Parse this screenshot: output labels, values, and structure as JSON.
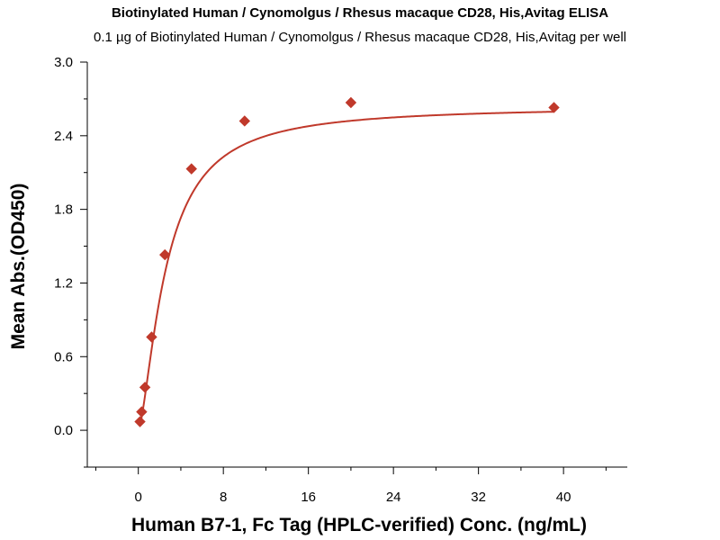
{
  "chart_data": {
    "type": "scatter",
    "title": "Biotinylated Human / Cynomolgus / Rhesus macaque CD28, His,Avitag ELISA",
    "subtitle": "0.1 µg of Biotinylated Human / Cynomolgus / Rhesus macaque CD28, His,Avitag per well",
    "xlabel": "Human B7-1, Fc Tag (HPLC-verified) Conc. (ng/mL)",
    "ylabel": "Mean Abs.(OD450)",
    "xlim": [
      -4.8,
      46
    ],
    "ylim": [
      -0.3,
      3.0
    ],
    "xticks": [
      0,
      8,
      16,
      24,
      32,
      40
    ],
    "yticks": [
      0.0,
      0.6,
      1.2,
      1.8,
      2.4,
      3.0
    ],
    "xtick_labels": [
      "0",
      "8",
      "16",
      "24",
      "32",
      "40"
    ],
    "ytick_labels": [
      "0.0",
      "0.6",
      "1.2",
      "1.8",
      "2.4",
      "3.0"
    ],
    "grid": false,
    "colors": {
      "series": "#c0392b",
      "axis": "#000000"
    },
    "series": [
      {
        "marker": "diamond",
        "x": [
          0.156,
          0.313,
          0.625,
          1.25,
          2.5,
          5,
          10,
          20,
          39.1
        ],
        "y": [
          0.07,
          0.15,
          0.35,
          0.76,
          1.43,
          2.13,
          2.52,
          2.67,
          2.63
        ]
      }
    ],
    "fit_curve": {
      "type": "sigmoidal",
      "min": 0.0,
      "max": 2.64,
      "ec50": 2.6,
      "hill": 1.5
    }
  }
}
